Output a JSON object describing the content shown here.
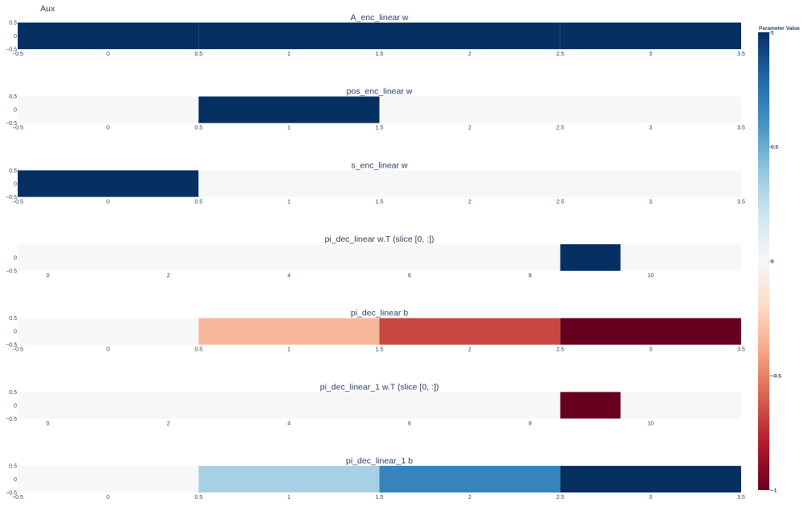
{
  "figure": {
    "title": "Aux"
  },
  "colorbar": {
    "title": "Parameter Value",
    "min": -1,
    "max": 1,
    "ticks": [
      1,
      0.5,
      0,
      -0.5,
      -1
    ],
    "tick_labels": [
      "1",
      "0.5",
      "0",
      "−0.5",
      "−1"
    ],
    "colorscale": [
      "#67001f",
      "#b2182b",
      "#d6604d",
      "#f4a582",
      "#fddbc7",
      "#f7f7f7",
      "#d1e5f0",
      "#92c5de",
      "#4393c3",
      "#2166ac",
      "#053061"
    ]
  },
  "chart_data": [
    {
      "type": "heatmap",
      "title": "A_enc_linear w",
      "x": [
        0,
        1,
        2,
        3
      ],
      "z": [
        1,
        1,
        1,
        1
      ],
      "xlim": [
        -0.5,
        3.5
      ],
      "ylim": [
        -0.5,
        0.5
      ],
      "x_ticks": [
        -0.5,
        0,
        0.5,
        1,
        1.5,
        2,
        2.5,
        3,
        3.5
      ],
      "x_tick_labels": [
        "−0.5",
        "0",
        "0.5",
        "1",
        "1.5",
        "2",
        "2.5",
        "3",
        "3.5"
      ],
      "y_ticks": [
        0.5,
        0,
        -0.5
      ],
      "y_tick_labels": [
        "0.5",
        "0",
        "−0.5"
      ]
    },
    {
      "type": "heatmap",
      "title": "pos_enc_linear w",
      "x": [
        0,
        1,
        2,
        3
      ],
      "z": [
        0,
        1,
        0,
        0
      ],
      "xlim": [
        -0.5,
        3.5
      ],
      "ylim": [
        -0.5,
        0.5
      ],
      "x_ticks": [
        -0.5,
        0,
        0.5,
        1,
        1.5,
        2,
        2.5,
        3,
        3.5
      ],
      "x_tick_labels": [
        "−0.5",
        "0",
        "0.5",
        "1",
        "1.5",
        "2",
        "2.5",
        "3",
        "3.5"
      ],
      "y_ticks": [
        0.5,
        0,
        -0.5
      ],
      "y_tick_labels": [
        "0.5",
        "0",
        "−0.5"
      ]
    },
    {
      "type": "heatmap",
      "title": "s_enc_linear w",
      "x": [
        0,
        1,
        2,
        3
      ],
      "z": [
        1,
        0,
        0,
        0
      ],
      "xlim": [
        -0.5,
        3.5
      ],
      "ylim": [
        -0.5,
        0.5
      ],
      "x_ticks": [
        -0.5,
        0,
        0.5,
        1,
        1.5,
        2,
        2.5,
        3,
        3.5
      ],
      "x_tick_labels": [
        "−0.5",
        "0",
        "0.5",
        "1",
        "1.5",
        "2",
        "2.5",
        "3",
        "3.5"
      ],
      "y_ticks": [
        0.5,
        0,
        -0.5
      ],
      "y_tick_labels": [
        "0.5",
        "0",
        "−0.5"
      ]
    },
    {
      "type": "heatmap",
      "title": "pi_dec_linear w.T (slice [0, :])",
      "x": [
        0,
        1,
        2,
        3,
        4,
        5,
        6,
        7,
        8,
        9,
        10,
        11
      ],
      "z": [
        0,
        0,
        0,
        0,
        0,
        0,
        0,
        0,
        0,
        1,
        0,
        0
      ],
      "xlim": [
        -0.5,
        11.5
      ],
      "ylim": [
        -0.5,
        0.5
      ],
      "x_ticks": [
        0,
        2,
        4,
        6,
        8,
        10
      ],
      "x_tick_labels": [
        "0",
        "2",
        "4",
        "6",
        "8",
        "10"
      ],
      "y_ticks": [
        0,
        -0.5
      ],
      "y_tick_labels": [
        "0",
        "−0.5"
      ]
    },
    {
      "type": "heatmap",
      "title": "pi_dec_linear b",
      "x": [
        0,
        1,
        2,
        3
      ],
      "z": [
        0,
        -0.33,
        -0.67,
        -1
      ],
      "xlim": [
        -0.5,
        3.5
      ],
      "ylim": [
        -0.5,
        0.5
      ],
      "x_ticks": [
        -0.5,
        0,
        0.5,
        1,
        1.5,
        2,
        2.5,
        3,
        3.5
      ],
      "x_tick_labels": [
        "−0.5",
        "0",
        "0.5",
        "1",
        "1.5",
        "2",
        "2.5",
        "3",
        "3.5"
      ],
      "y_ticks": [
        0.5,
        0,
        -0.5
      ],
      "y_tick_labels": [
        "0.5",
        "0",
        "−0.5"
      ]
    },
    {
      "type": "heatmap",
      "title": "pi_dec_linear_1 w.T (slice [0, :])",
      "x": [
        0,
        1,
        2,
        3,
        4,
        5,
        6,
        7,
        8,
        9,
        10,
        11
      ],
      "z": [
        0,
        0,
        0,
        0,
        0,
        0,
        0,
        0,
        0,
        -1,
        0,
        0
      ],
      "xlim": [
        -0.5,
        11.5
      ],
      "ylim": [
        -0.5,
        0.5
      ],
      "x_ticks": [
        0,
        2,
        4,
        6,
        8,
        10
      ],
      "x_tick_labels": [
        "0",
        "2",
        "4",
        "6",
        "8",
        "10"
      ],
      "y_ticks": [
        0.5,
        0,
        -0.5
      ],
      "y_tick_labels": [
        "0.5",
        "0",
        "−0.5"
      ]
    },
    {
      "type": "heatmap",
      "title": "pi_dec_linear_1 b",
      "x": [
        0,
        1,
        2,
        3
      ],
      "z": [
        0,
        0.33,
        0.67,
        1
      ],
      "xlim": [
        -0.5,
        3.5
      ],
      "ylim": [
        -0.5,
        0.5
      ],
      "x_ticks": [
        -0.5,
        0,
        0.5,
        1,
        1.5,
        2,
        2.5,
        3,
        3.5
      ],
      "x_tick_labels": [
        "−0.5",
        "0",
        "0.5",
        "1",
        "1.5",
        "2",
        "2.5",
        "3",
        "3.5"
      ],
      "y_ticks": [
        0.5,
        0,
        -0.5
      ],
      "y_tick_labels": [
        "0.5",
        "0",
        "−0.5"
      ]
    }
  ]
}
